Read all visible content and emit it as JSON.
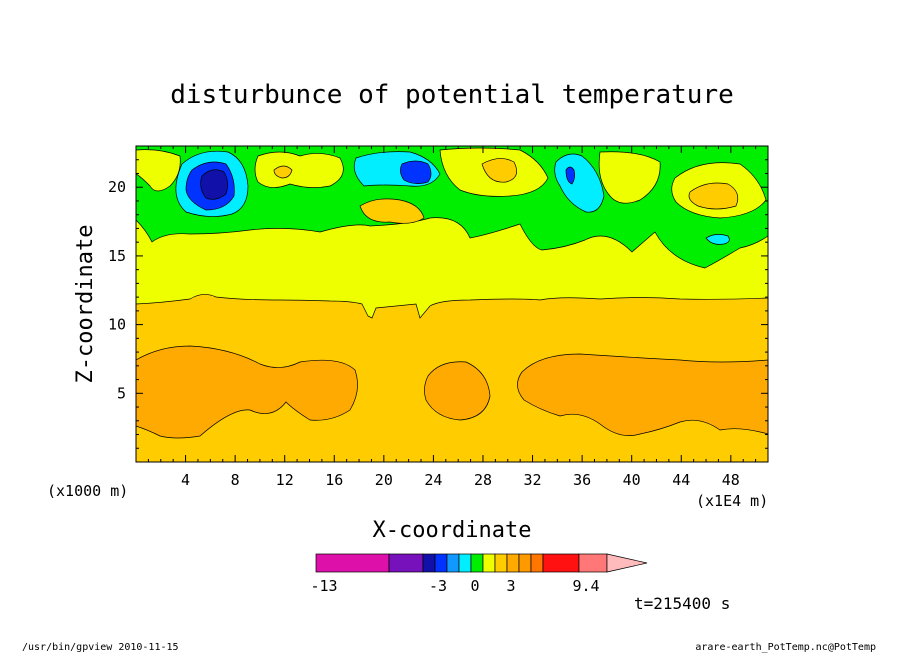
{
  "chart_data": {
    "type": "heatmap",
    "title": "disturbunce of potential temperature",
    "xlabel": "X-coordinate",
    "ylabel": "Z-coordinate",
    "x_unit_label": "(x1000 m)",
    "x_scale_label": "(x1E4 m)",
    "xlim": [
      0,
      51
    ],
    "ylim": [
      0,
      23
    ],
    "x_ticks": [
      4,
      8,
      12,
      16,
      20,
      24,
      28,
      32,
      36,
      40,
      44,
      48
    ],
    "y_ticks": [
      5,
      10,
      15,
      20
    ],
    "colorbar": {
      "tick_labels": [
        "-13",
        "-3",
        "0",
        "3",
        "9.4"
      ],
      "colors": [
        "#dd11aa",
        "#7711bb",
        "#1111aa",
        "#0033ff",
        "#1199ff",
        "#00eeff",
        "#00ee00",
        "#eeff00",
        "#ffcc00",
        "#ffaa00",
        "#ff9900",
        "#ff7700",
        "#ff1111",
        "#ff7777",
        "#ffbbbb"
      ]
    },
    "field": {
      "layers": [
        {
          "z_range": [
            0,
            7.5
          ],
          "value_range": [
            1.5,
            3
          ],
          "color": "#ffcc00"
        },
        {
          "z_range": [
            1.5,
            8.5
          ],
          "value_range": [
            3,
            4.5
          ],
          "color": "#ffaa00"
        },
        {
          "z_range": [
            7.5,
            11.5
          ],
          "value_range": [
            1.5,
            3
          ],
          "color": "#ffcc00"
        },
        {
          "z_range": [
            11.5,
            17
          ],
          "value_range": [
            0,
            1.5
          ],
          "color": "#eeff00"
        },
        {
          "z_range": [
            17,
            23
          ],
          "value_range": [
            -1.5,
            0
          ],
          "color": "#00ee00"
        }
      ],
      "cells": [
        {
          "x": 6,
          "z": 20,
          "value": -4,
          "color": "#1111aa"
        },
        {
          "x": 22,
          "z": 21,
          "value": -3,
          "color": "#0033ff"
        },
        {
          "x": 34.7,
          "z": 20.8,
          "value": -3,
          "color": "#0033ff"
        },
        {
          "x": 46,
          "z": 16.5,
          "value": -1.5,
          "color": "#00eeff"
        },
        {
          "x": 21,
          "z": 18,
          "value": 3,
          "color": "#ffcc00"
        },
        {
          "x": 46,
          "z": 19.5,
          "value": 3,
          "color": "#ffcc00"
        }
      ]
    }
  },
  "time_label": "t=215400 s",
  "footer_left": "/usr/bin/gpview   2010-11-15",
  "footer_right": "arare-earth_PotTemp.nc@PotTemp"
}
